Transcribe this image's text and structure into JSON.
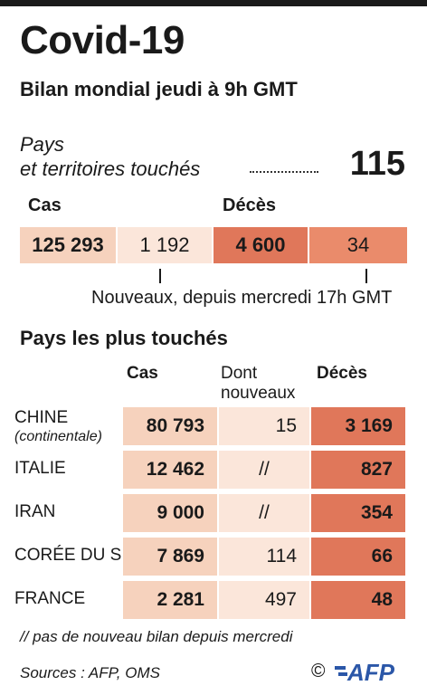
{
  "title": "Covid-19",
  "subtitle": "Bilan mondial jeudi à 9h GMT",
  "pays": {
    "label_line1": "Pays",
    "label_line2": "et territoires touchés",
    "value": "115"
  },
  "world": {
    "cas_label": "Cas",
    "deces_label": "Décès",
    "cas_total": "125 293",
    "cas_nouveaux": "1 192",
    "deces_total": "4 600",
    "deces_nouveaux": "34",
    "nouveaux_note": "Nouveaux, depuis mercredi 17h GMT"
  },
  "section_title": "Pays les plus touchés",
  "table_headers": {
    "cas": "Cas",
    "dont_line1": "Dont",
    "dont_line2": "nouveaux",
    "deces": "Décès"
  },
  "chart_data": {
    "type": "table",
    "title": "Covid-19",
    "subtitle": "Bilan mondial jeudi à 9h GMT",
    "columns": [
      "Cas",
      "Dont nouveaux",
      "Décès"
    ],
    "rows": [
      {
        "name": "CHINE",
        "sub": "(continentale)",
        "cas": "80 793",
        "nouveaux": "15",
        "deces": "3 169"
      },
      {
        "name": "ITALIE",
        "sub": "",
        "cas": "12 462",
        "nouveaux": "//",
        "deces": "827"
      },
      {
        "name": "IRAN",
        "sub": "",
        "cas": "9 000",
        "nouveaux": "//",
        "deces": "354"
      },
      {
        "name": "CORÉE DU S.",
        "sub": "",
        "cas": "7 869",
        "nouveaux": "114",
        "deces": "66"
      },
      {
        "name": "FRANCE",
        "sub": "",
        "cas": "2 281",
        "nouveaux": "497",
        "deces": "48"
      }
    ]
  },
  "footnote": "// pas de nouveau bilan depuis mercredi",
  "sources": "Sources : AFP, OMS",
  "copyright": "©",
  "logo_text": "AFP",
  "colors": {
    "cas": "#f6d2bd",
    "nouveaux": "#fbe6da",
    "deces": "#e0775a",
    "deces_nouveaux": "#ea8b6b",
    "afp_blue": "#2b57a8"
  }
}
